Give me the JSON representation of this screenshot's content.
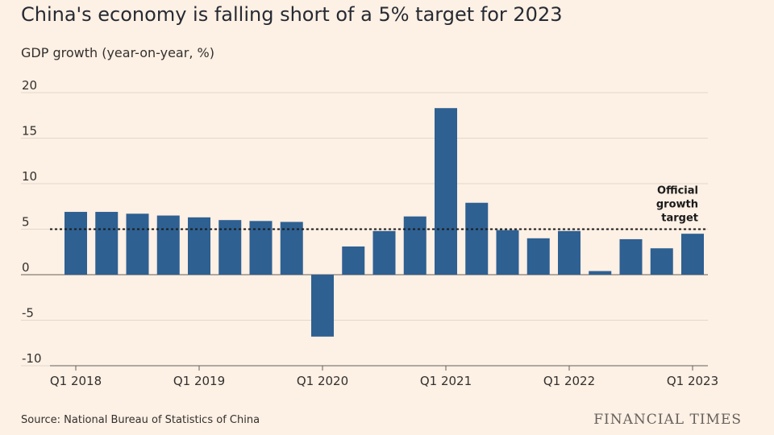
{
  "title": "China's economy is falling short of a 5% target for 2023",
  "subtitle": "GDP growth (year-on-year, %)",
  "source": "Source: National Bureau of Statistics of China",
  "brand": "FINANCIAL TIMES",
  "colors": {
    "bar": "#2e6092",
    "background": "#fdf0e4",
    "grid": "#e3d6cb",
    "axis": "#66605c"
  },
  "chart_data": {
    "type": "bar",
    "categories": [
      "Q1 2018",
      "Q2 2018",
      "Q3 2018",
      "Q4 2018",
      "Q1 2019",
      "Q2 2019",
      "Q3 2019",
      "Q4 2019",
      "Q1 2020",
      "Q2 2020",
      "Q3 2020",
      "Q4 2020",
      "Q1 2021",
      "Q2 2021",
      "Q3 2021",
      "Q4 2021",
      "Q1 2022",
      "Q2 2022",
      "Q3 2022",
      "Q4 2022",
      "Q1 2023"
    ],
    "values": [
      6.9,
      6.9,
      6.7,
      6.5,
      6.3,
      6.0,
      5.9,
      5.8,
      -6.8,
      3.1,
      4.8,
      6.4,
      18.3,
      7.9,
      4.9,
      4.0,
      4.8,
      0.4,
      3.9,
      2.9,
      4.5
    ],
    "tick_labels": [
      "Q1 2018",
      "Q1 2019",
      "Q1 2020",
      "Q1 2021",
      "Q1 2022",
      "Q1 2023"
    ],
    "y_ticks": [
      20,
      15,
      10,
      5,
      0,
      -5,
      -10
    ],
    "ylim": [
      -10,
      20
    ],
    "reference_line": {
      "value": 5,
      "label_lines": [
        "Official",
        "growth",
        "target"
      ],
      "style": "dotted"
    },
    "grid": true,
    "xlabel": "",
    "ylabel": ""
  }
}
